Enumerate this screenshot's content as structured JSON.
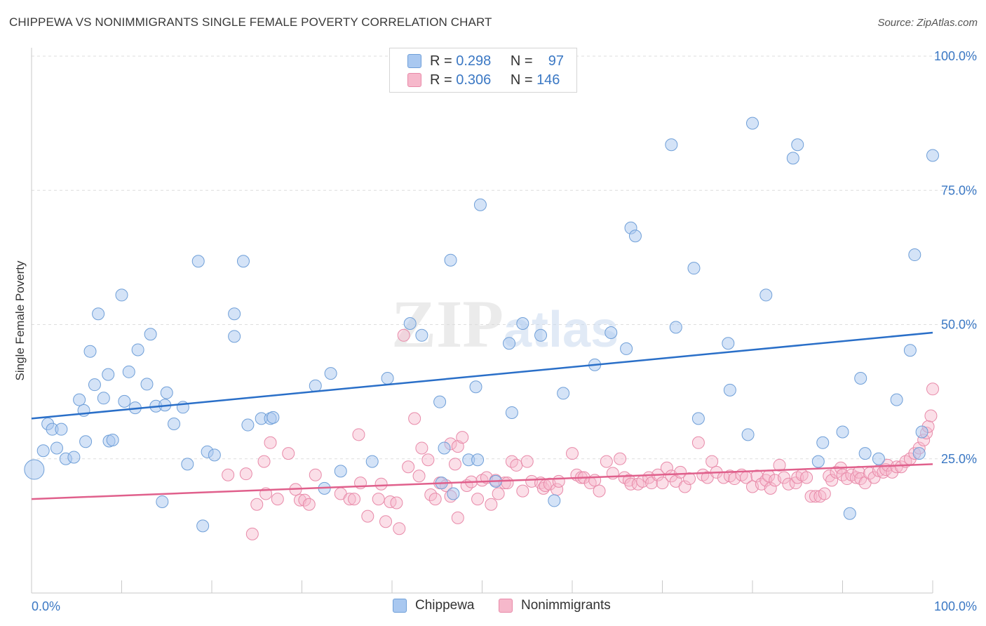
{
  "header": {
    "title": "CHIPPEWA VS NONIMMIGRANTS SINGLE FEMALE POVERTY CORRELATION CHART",
    "source": "Source: ZipAtlas.com"
  },
  "watermark": {
    "zip": "ZIP",
    "atlas": "atlas"
  },
  "legend": {
    "rows": [
      {
        "r_label": "R =",
        "r_value": "0.298",
        "n_label": "N =",
        "n_value": "97"
      },
      {
        "r_label": "R =",
        "r_value": "0.306",
        "n_label": "N =",
        "n_value": "146"
      }
    ]
  },
  "bottom_legend": {
    "series1": "Chippewa",
    "series2": "Nonimmigrants"
  },
  "colors": {
    "series1_fill": "#a9c8f0",
    "series1_stroke": "#6f9fd8",
    "series1_line": "#2a6fc8",
    "series2_fill": "#f6b8cb",
    "series2_stroke": "#e88aa9",
    "series2_line": "#e0608c",
    "axis_label": "#3b78c4",
    "grid": "#dddddd"
  },
  "chart_data": {
    "type": "scatter",
    "ylabel": "Single Female Poverty",
    "xlabel": "",
    "xlim": [
      0,
      100
    ],
    "ylim": [
      0,
      100
    ],
    "x_tick_labels": [
      "0.0%",
      "100.0%"
    ],
    "y_tick_labels": [
      "25.0%",
      "50.0%",
      "75.0%",
      "100.0%"
    ],
    "y_ticks": [
      25,
      50,
      75,
      100
    ],
    "grid": true,
    "series": [
      {
        "name": "Chippewa",
        "r": 0.298,
        "n": 97,
        "trend": {
          "x": [
            0,
            100
          ],
          "y": [
            32.5,
            48.5
          ]
        },
        "points": [
          [
            0.3,
            23
          ],
          [
            1.3,
            26.5
          ],
          [
            1.8,
            31.5
          ],
          [
            2.3,
            30.5
          ],
          [
            2.8,
            27
          ],
          [
            3.3,
            30.5
          ],
          [
            3.8,
            25
          ],
          [
            4.7,
            25.3
          ],
          [
            5.3,
            36
          ],
          [
            5.8,
            34
          ],
          [
            6,
            28.2
          ],
          [
            6.5,
            45
          ],
          [
            7,
            38.8
          ],
          [
            7.4,
            52
          ],
          [
            8,
            36.3
          ],
          [
            8.5,
            40.7
          ],
          [
            8.6,
            28.3
          ],
          [
            9,
            28.5
          ],
          [
            10,
            55.5
          ],
          [
            10.3,
            35.7
          ],
          [
            10.8,
            41.2
          ],
          [
            11.5,
            34.5
          ],
          [
            11.8,
            45.3
          ],
          [
            12.8,
            38.9
          ],
          [
            13.2,
            48.2
          ],
          [
            13.8,
            34.8
          ],
          [
            14.5,
            17
          ],
          [
            14.8,
            35
          ],
          [
            15,
            37.3
          ],
          [
            15.8,
            31.5
          ],
          [
            16.8,
            34.6
          ],
          [
            17.3,
            24
          ],
          [
            18.5,
            61.8
          ],
          [
            19,
            12.5
          ],
          [
            19.5,
            26.3
          ],
          [
            20.3,
            25.7
          ],
          [
            22.5,
            52
          ],
          [
            22.5,
            47.8
          ],
          [
            23.5,
            61.8
          ],
          [
            24,
            31.3
          ],
          [
            25.5,
            32.5
          ],
          [
            26.5,
            32.5
          ],
          [
            26.8,
            32.7
          ],
          [
            31.5,
            38.6
          ],
          [
            32.5,
            19.5
          ],
          [
            33.2,
            40.9
          ],
          [
            34.3,
            22.7
          ],
          [
            37.8,
            24.5
          ],
          [
            39.5,
            40
          ],
          [
            42,
            50.2
          ],
          [
            43.3,
            48
          ],
          [
            45.3,
            35.6
          ],
          [
            45.5,
            20.5
          ],
          [
            45.8,
            27
          ],
          [
            46.5,
            62
          ],
          [
            46.8,
            18.5
          ],
          [
            48.5,
            24.8
          ],
          [
            49.3,
            38.4
          ],
          [
            49.5,
            24.8
          ],
          [
            49.8,
            72.3
          ],
          [
            51.5,
            20.8
          ],
          [
            53,
            46.5
          ],
          [
            53.3,
            33.6
          ],
          [
            54.5,
            50.2
          ],
          [
            56.5,
            48
          ],
          [
            58,
            17.2
          ],
          [
            59,
            37.2
          ],
          [
            62.5,
            42.5
          ],
          [
            64.3,
            48.5
          ],
          [
            66,
            45.5
          ],
          [
            66.5,
            68
          ],
          [
            67,
            66.5
          ],
          [
            71,
            83.5
          ],
          [
            71.5,
            49.5
          ],
          [
            73.5,
            60.5
          ],
          [
            74,
            32.5
          ],
          [
            77.3,
            46.5
          ],
          [
            77.5,
            37.8
          ],
          [
            79.5,
            29.5
          ],
          [
            80,
            87.5
          ],
          [
            81.5,
            55.5
          ],
          [
            84.5,
            81
          ],
          [
            85,
            83.5
          ],
          [
            87.3,
            24.5
          ],
          [
            87.8,
            28
          ],
          [
            90,
            30
          ],
          [
            90.8,
            14.8
          ],
          [
            92,
            40
          ],
          [
            92.5,
            26
          ],
          [
            94,
            25
          ],
          [
            96,
            36
          ],
          [
            97.5,
            45.2
          ],
          [
            98,
            63
          ],
          [
            98.5,
            26
          ],
          [
            98.8,
            30
          ],
          [
            100,
            81.5
          ]
        ]
      },
      {
        "name": "Nonimmigrants",
        "r": 0.306,
        "n": 146,
        "trend": {
          "x": [
            0,
            100
          ],
          "y": [
            17.5,
            24
          ]
        },
        "points": [
          [
            21.8,
            22
          ],
          [
            23.8,
            22.2
          ],
          [
            24.5,
            11
          ],
          [
            25,
            16.5
          ],
          [
            25.8,
            24.5
          ],
          [
            26,
            18.5
          ],
          [
            26.5,
            28
          ],
          [
            27.3,
            17.5
          ],
          [
            28.5,
            26
          ],
          [
            29.3,
            19.3
          ],
          [
            29.8,
            17.3
          ],
          [
            30.3,
            17.3
          ],
          [
            30.8,
            16.5
          ],
          [
            31.5,
            22
          ],
          [
            34.3,
            18.5
          ],
          [
            35.3,
            17.5
          ],
          [
            35.8,
            17.5
          ],
          [
            36.3,
            29.5
          ],
          [
            36.5,
            20.5
          ],
          [
            37.3,
            14.3
          ],
          [
            38.5,
            17.5
          ],
          [
            38.8,
            20.3
          ],
          [
            39.3,
            13.3
          ],
          [
            39.8,
            17
          ],
          [
            40.5,
            16.8
          ],
          [
            40.8,
            12
          ],
          [
            41.3,
            48
          ],
          [
            41.8,
            23.5
          ],
          [
            42.5,
            32.5
          ],
          [
            43,
            21.8
          ],
          [
            43.3,
            27
          ],
          [
            44,
            24.8
          ],
          [
            44.3,
            18.3
          ],
          [
            44.8,
            17.5
          ],
          [
            45.3,
            20.5
          ],
          [
            46,
            20
          ],
          [
            46.5,
            18
          ],
          [
            46.5,
            27.8
          ],
          [
            47,
            24
          ],
          [
            47.3,
            14
          ],
          [
            47.3,
            27.3
          ],
          [
            47.8,
            29
          ],
          [
            48.3,
            20
          ],
          [
            48.8,
            20.7
          ],
          [
            49.5,
            17.5
          ],
          [
            50,
            21
          ],
          [
            50.5,
            21.5
          ],
          [
            51,
            16.5
          ],
          [
            51.5,
            21
          ],
          [
            51.8,
            18.5
          ],
          [
            52.5,
            20.5
          ],
          [
            52.8,
            20.5
          ],
          [
            53.3,
            24.5
          ],
          [
            53.8,
            23.8
          ],
          [
            54.5,
            19
          ],
          [
            55,
            24.5
          ],
          [
            55.5,
            20.8
          ],
          [
            56.5,
            20.5
          ],
          [
            56.8,
            19.5
          ],
          [
            57,
            20
          ],
          [
            57.5,
            20.3
          ],
          [
            58.3,
            19.3
          ],
          [
            58.5,
            20.8
          ],
          [
            60,
            26
          ],
          [
            60.5,
            22
          ],
          [
            61,
            21.5
          ],
          [
            61.3,
            21.5
          ],
          [
            62,
            20.5
          ],
          [
            62.5,
            21
          ],
          [
            63,
            19
          ],
          [
            63.8,
            24.5
          ],
          [
            64.5,
            22.3
          ],
          [
            65.3,
            25
          ],
          [
            65.8,
            21.5
          ],
          [
            66.3,
            21
          ],
          [
            66.5,
            20.3
          ],
          [
            67.3,
            20.3
          ],
          [
            67.8,
            20.8
          ],
          [
            68.5,
            21.5
          ],
          [
            68.8,
            20.5
          ],
          [
            69.5,
            22
          ],
          [
            70,
            20.5
          ],
          [
            70.5,
            23.3
          ],
          [
            71,
            21.8
          ],
          [
            71.5,
            20.8
          ],
          [
            72,
            22.5
          ],
          [
            72.5,
            19.8
          ],
          [
            73,
            21.3
          ],
          [
            74,
            28
          ],
          [
            74.5,
            22
          ],
          [
            75,
            21.5
          ],
          [
            75.5,
            24.5
          ],
          [
            76,
            22.5
          ],
          [
            76.8,
            21.5
          ],
          [
            77.5,
            21.8
          ],
          [
            78,
            21.3
          ],
          [
            78.8,
            22
          ],
          [
            79.3,
            21.5
          ],
          [
            80,
            19.8
          ],
          [
            80.5,
            21.8
          ],
          [
            81,
            20.3
          ],
          [
            81.5,
            21
          ],
          [
            81.8,
            21.8
          ],
          [
            82,
            19.5
          ],
          [
            82.5,
            21
          ],
          [
            83,
            23.8
          ],
          [
            83.5,
            21.5
          ],
          [
            84,
            20.3
          ],
          [
            84.8,
            20.5
          ],
          [
            85,
            21.5
          ],
          [
            85.5,
            22
          ],
          [
            86,
            21.5
          ],
          [
            86.5,
            18
          ],
          [
            87,
            18
          ],
          [
            87.5,
            18
          ],
          [
            88,
            18.5
          ],
          [
            88.5,
            21.8
          ],
          [
            88.8,
            21
          ],
          [
            89.3,
            22.5
          ],
          [
            89.8,
            23.3
          ],
          [
            90,
            22
          ],
          [
            90.5,
            21.3
          ],
          [
            91,
            22
          ],
          [
            91.5,
            21.5
          ],
          [
            91.8,
            22.5
          ],
          [
            92,
            21.3
          ],
          [
            92.5,
            20.5
          ],
          [
            93,
            22.3
          ],
          [
            93.5,
            21.5
          ],
          [
            94,
            22.8
          ],
          [
            94.5,
            22.5
          ],
          [
            94.8,
            23
          ],
          [
            95,
            23.8
          ],
          [
            95.5,
            22.5
          ],
          [
            96,
            23.5
          ],
          [
            96.5,
            23.5
          ],
          [
            97,
            24.5
          ],
          [
            97.5,
            25
          ],
          [
            98,
            26
          ],
          [
            98.5,
            27
          ],
          [
            99,
            28.5
          ],
          [
            99.3,
            29.8
          ],
          [
            99.5,
            31
          ],
          [
            99.8,
            33
          ],
          [
            100,
            38
          ]
        ]
      }
    ]
  }
}
